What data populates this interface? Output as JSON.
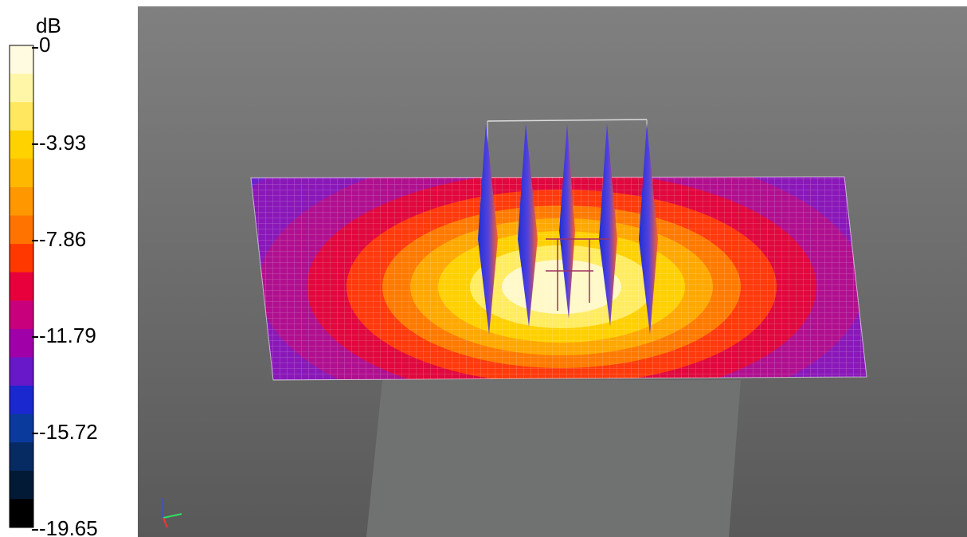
{
  "colorbar": {
    "unit": "dB",
    "ticks": [
      "0",
      "-3.93",
      "-7.86",
      "-11.79",
      "-15.72",
      "-19.65"
    ]
  }
}
